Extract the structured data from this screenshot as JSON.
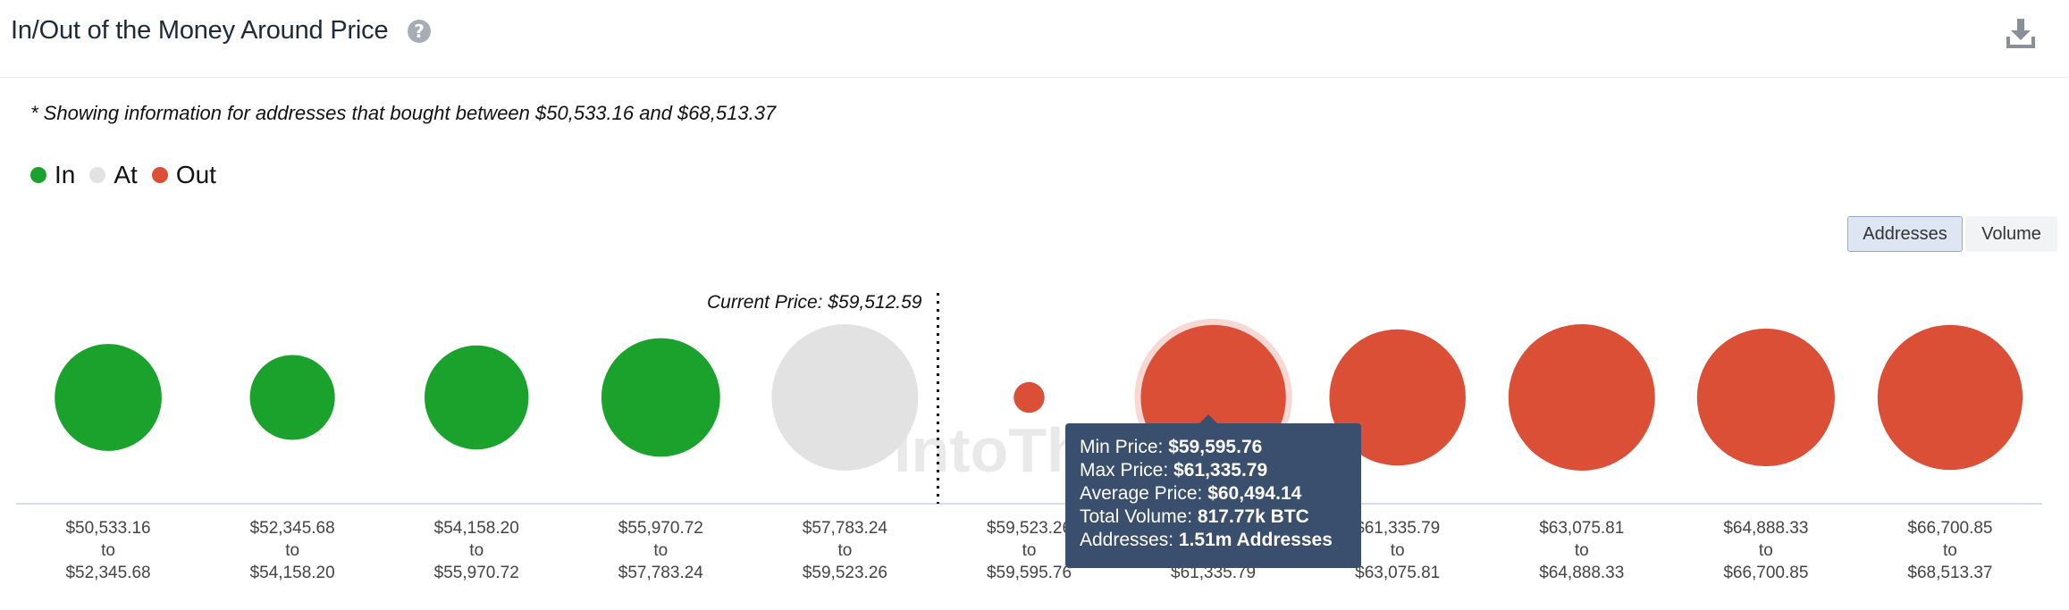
{
  "header": {
    "title": "In/Out of the Money Around Price",
    "help_icon": "question-circle-icon",
    "download_icon": "download-icon"
  },
  "note": "* Showing information for addresses that bought between $50,533.16 and $68,513.37",
  "legend": [
    {
      "label": "In",
      "color": "#1aa22c"
    },
    {
      "label": "At",
      "color": "#e2e2e2"
    },
    {
      "label": "Out",
      "color": "#dc4f37"
    }
  ],
  "toggle": {
    "addresses": "Addresses",
    "volume": "Volume",
    "selected": "Addresses"
  },
  "current_price_label": "Current Price: $59,512.59",
  "watermark": "IntoThe",
  "chart_data": {
    "type": "bubble",
    "metric": "Addresses",
    "current_price": 59512.59,
    "categories": [
      {
        "from": "$50,533.16",
        "to_word": "to",
        "to": "$52,345.68",
        "status": "In",
        "relative_size": 0.73
      },
      {
        "from": "$52,345.68",
        "to_word": "to",
        "to": "$54,158.20",
        "status": "In",
        "relative_size": 0.58
      },
      {
        "from": "$54,158.20",
        "to_word": "to",
        "to": "$55,970.72",
        "status": "In",
        "relative_size": 0.71
      },
      {
        "from": "$55,970.72",
        "to_word": "to",
        "to": "$57,783.24",
        "status": "In",
        "relative_size": 0.81
      },
      {
        "from": "$57,783.24",
        "to_word": "to",
        "to": "$59,523.26",
        "status": "At",
        "relative_size": 1.0
      },
      {
        "from": "$59,523.26",
        "to_word": "to",
        "to": "$59,595.76",
        "status": "Out",
        "relative_size": 0.21
      },
      {
        "from": "$59,595.76",
        "to_word": "to",
        "to": "$61,335.79",
        "status": "Out",
        "relative_size": 0.99,
        "highlighted": true
      },
      {
        "from": "$61,335.79",
        "to_word": "to",
        "to": "$63,075.81",
        "status": "Out",
        "relative_size": 0.93
      },
      {
        "from": "$63,075.81",
        "to_word": "to",
        "to": "$64,888.33",
        "status": "Out",
        "relative_size": 1.0
      },
      {
        "from": "$64,888.33",
        "to_word": "to",
        "to": "$66,700.85",
        "status": "Out",
        "relative_size": 0.94
      },
      {
        "from": "$66,700.85",
        "to_word": "to",
        "to": "$68,513.37",
        "status": "Out",
        "relative_size": 0.99
      }
    ]
  },
  "tooltip": {
    "rows": [
      {
        "label": "Min Price:",
        "value": "$59,595.76"
      },
      {
        "label": "Max Price:",
        "value": "$61,335.79"
      },
      {
        "label": "Average Price:",
        "value": "$60,494.14"
      },
      {
        "label": "Total Volume:",
        "value": "817.77k BTC"
      },
      {
        "label": "Addresses:",
        "value": "1.51m Addresses"
      }
    ]
  }
}
